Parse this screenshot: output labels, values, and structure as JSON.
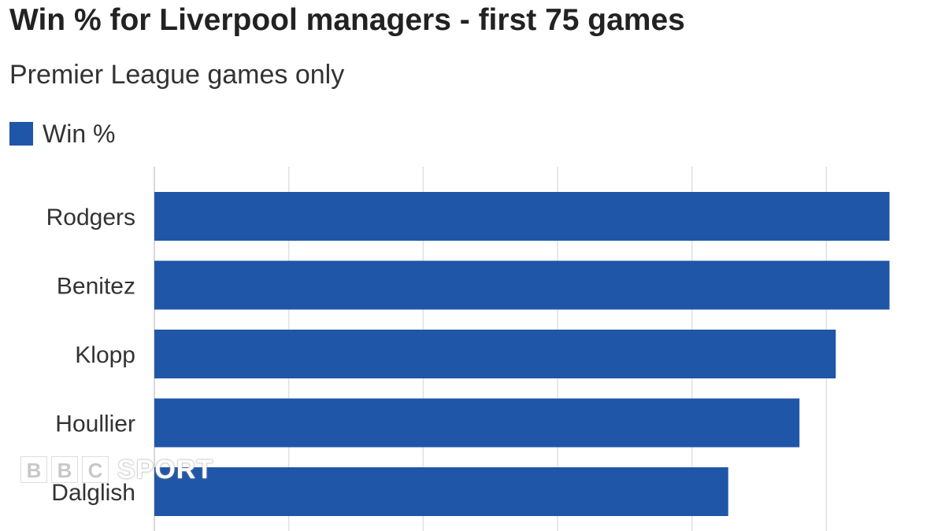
{
  "title": "Win % for Liverpool managers - first 75 games",
  "subtitle": "Premier League games only",
  "legend": {
    "label": "Win %",
    "color": "#1f56a8"
  },
  "brand": {
    "letters": [
      "B",
      "B",
      "C"
    ],
    "sport": "SPORT"
  },
  "chart_data": {
    "type": "bar",
    "orientation": "horizontal",
    "categories": [
      "Rodgers",
      "Benitez",
      "Klopp",
      "Houllier",
      "Dalglish"
    ],
    "series": [
      {
        "name": "Win %",
        "values": [
          54.7,
          54.7,
          50.7,
          48.0,
          42.7
        ],
        "color": "#1f56a8"
      }
    ],
    "xlim": [
      0,
      60
    ],
    "grid": true,
    "legend_position": "top-left"
  }
}
